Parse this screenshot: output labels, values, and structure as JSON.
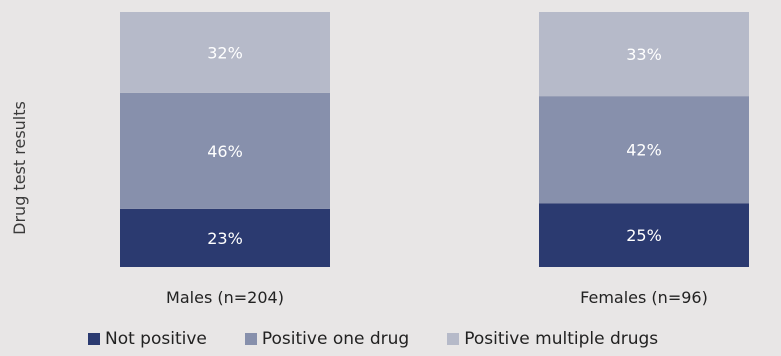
{
  "chart_data": {
    "type": "bar",
    "stacked": true,
    "normalized": true,
    "ylabel": "Drug test results",
    "xlabel": "",
    "title": "",
    "ylim": [
      0,
      100
    ],
    "categories": [
      "Males (n=204)",
      "Females (n=96)"
    ],
    "series": [
      {
        "name": "Not positive",
        "color": "#2b3a70",
        "values": [
          23,
          25
        ],
        "labels": [
          "23%",
          "25%"
        ]
      },
      {
        "name": "Positive one drug",
        "color": "#8790ac",
        "values": [
          46,
          42
        ],
        "labels": [
          "46%",
          "42%"
        ]
      },
      {
        "name": "Positive multiple drugs",
        "color": "#b6bac9",
        "values": [
          32,
          33
        ],
        "labels": [
          "32%",
          "33%"
        ]
      }
    ],
    "legend": "bottom",
    "grid": false
  }
}
